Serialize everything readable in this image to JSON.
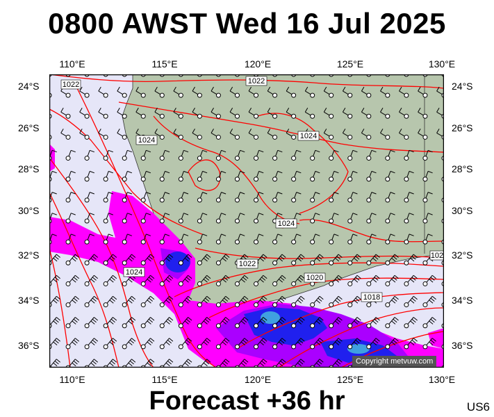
{
  "header": {
    "title": "0800 AWST Wed 16 Jul 2025"
  },
  "footer": {
    "forecast": "Forecast +36 hr",
    "code": "US6"
  },
  "map": {
    "lon_labels": [
      "110°E",
      "115°E",
      "120°E",
      "125°E",
      "130°E"
    ],
    "lat_labels": [
      "24°S",
      "26°S",
      "28°S",
      "30°S",
      "32°S",
      "34°S",
      "36°S"
    ],
    "copyright": "Copyright metvuw.com",
    "isobar_labels": [
      "1022",
      "1024",
      "1024",
      "1024",
      "1022",
      "1024",
      "1020",
      "1018",
      "1022",
      "102"
    ],
    "colors": {
      "sea": "#e6e6f8",
      "land": "#b7c6ad",
      "isobar": "#ff0000",
      "precip_light": "#ff00ff",
      "precip_medium": "#aa00ff",
      "precip_heavy": "#2020ee",
      "precip_extreme": "#40a0e0"
    }
  }
}
